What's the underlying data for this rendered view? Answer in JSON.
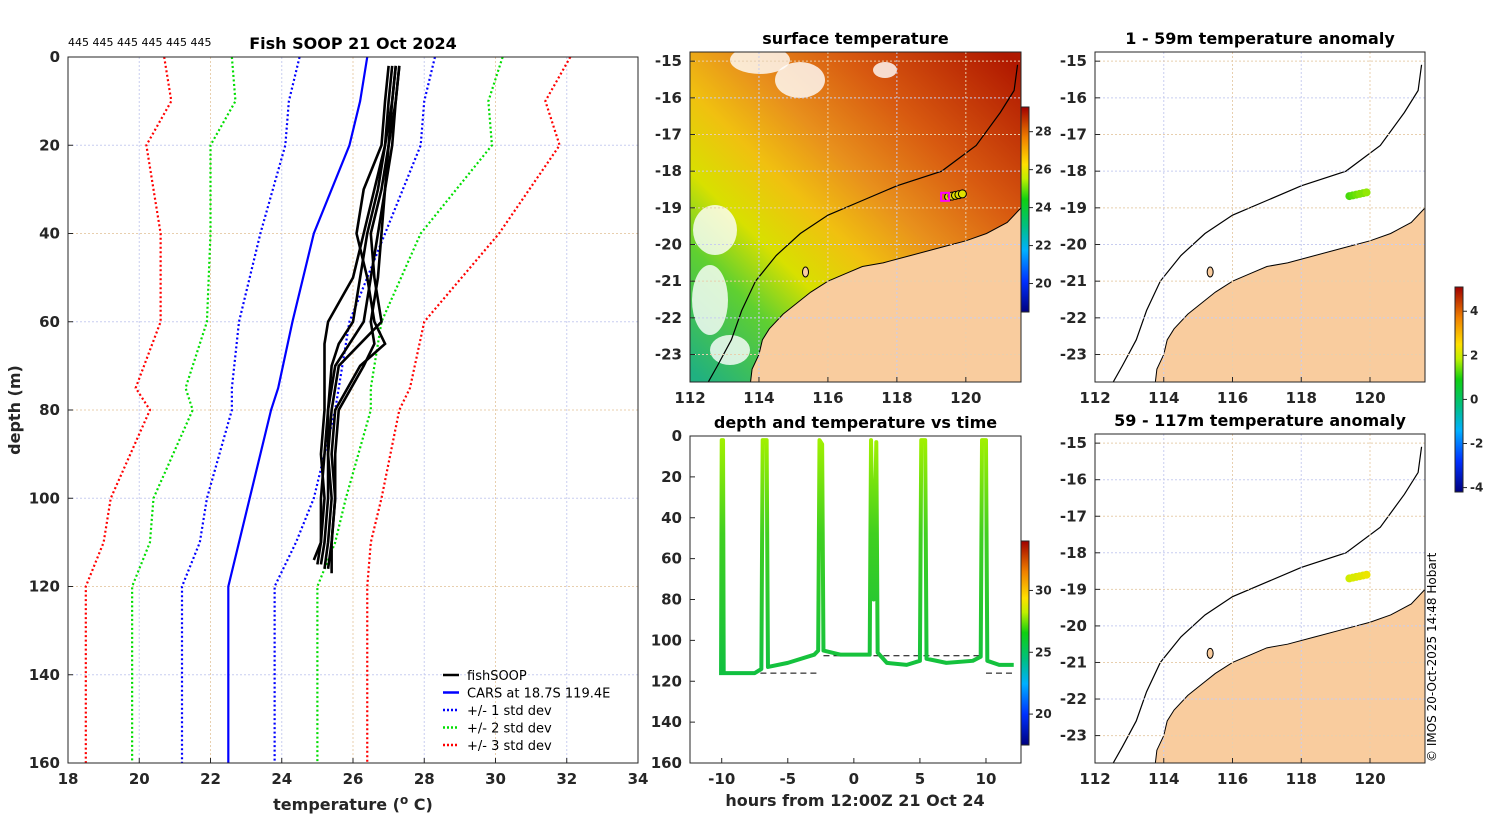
{
  "figure": {
    "copyright": "© IMOS 20-Oct-2025 14:48 Hobart"
  },
  "colors": {
    "fishsoop": "#000000",
    "cars": "#0000ff",
    "sd1": "#0000ff",
    "sd2": "#00dd00",
    "sd3": "#ff0000",
    "land": "#f9cc9e",
    "marker": "#ff00ff"
  },
  "chart_data": [
    {
      "type": "line",
      "title": "Fish SOOP 21 Oct 2024",
      "annotation": "445 445 445 445 445 445",
      "xlabel_parts": [
        "temperature (",
        "o",
        " C)"
      ],
      "ylabel": "depth (m)",
      "xlim": [
        18,
        34
      ],
      "ylim": [
        0,
        160
      ],
      "y_reversed": true,
      "xticks": [
        "18",
        "20",
        "22",
        "24",
        "26",
        "28",
        "30",
        "32",
        "34"
      ],
      "yticks": [
        "0",
        "20",
        "40",
        "60",
        "80",
        "100",
        "120",
        "140",
        "160"
      ],
      "legend": {
        "placement": "bottom-right",
        "entries": [
          "fishSOOP",
          "CARS at 18.7S 119.4E",
          "+/- 1 std dev",
          "+/- 2 std dev",
          "+/- 3 std dev"
        ]
      },
      "depths": [
        0,
        10,
        20,
        40,
        60,
        75,
        80,
        100,
        110,
        120,
        160
      ],
      "series": [
        {
          "name": "CARS mean",
          "style": "solid",
          "color": "#0000ff",
          "values": [
            26.4,
            26.2,
            25.9,
            24.9,
            24.3,
            23.9,
            23.7,
            23.1,
            22.8,
            22.5,
            22.5
          ]
        },
        {
          "name": "-1 std",
          "style": "dotted",
          "color": "#0000ff",
          "values": [
            24.5,
            24.2,
            24.1,
            23.4,
            22.8,
            22.6,
            22.6,
            21.9,
            21.7,
            21.2,
            21.2
          ]
        },
        {
          "name": "+1 std",
          "style": "dotted",
          "color": "#0000ff",
          "values": [
            28.3,
            28.0,
            27.9,
            26.9,
            25.9,
            25.6,
            25.5,
            24.9,
            24.4,
            23.8,
            23.8
          ]
        },
        {
          "name": "-2 std",
          "style": "dotted",
          "color": "#00dd00",
          "values": [
            22.6,
            22.7,
            22.0,
            22.0,
            21.9,
            21.3,
            21.5,
            20.4,
            20.3,
            19.8,
            19.8
          ]
        },
        {
          "name": "+2 std",
          "style": "dotted",
          "color": "#00dd00",
          "values": [
            30.2,
            29.8,
            29.9,
            27.9,
            26.8,
            26.5,
            26.5,
            25.8,
            25.5,
            25.0,
            25.0
          ]
        },
        {
          "name": "-3 std",
          "style": "dotted",
          "color": "#ff0000",
          "values": [
            20.7,
            20.9,
            20.2,
            20.6,
            20.6,
            19.9,
            20.3,
            19.2,
            19.0,
            18.5,
            18.5
          ]
        },
        {
          "name": "+3 std",
          "style": "dotted",
          "color": "#ff0000",
          "values": [
            32.1,
            31.4,
            31.8,
            30.1,
            28.0,
            27.6,
            27.3,
            26.8,
            26.5,
            26.4,
            26.4
          ]
        }
      ],
      "profiles": [
        {
          "depth": [
            2,
            10,
            20,
            30,
            40,
            50,
            60,
            65,
            70,
            80,
            90,
            100,
            110,
            115
          ],
          "temp": [
            27.1,
            27.0,
            26.9,
            26.6,
            26.3,
            26.0,
            25.3,
            25.2,
            25.2,
            25.2,
            25.1,
            25.2,
            25.1,
            25.0
          ]
        },
        {
          "depth": [
            2,
            10,
            20,
            30,
            40,
            50,
            60,
            65,
            70,
            80,
            90,
            100,
            110,
            116
          ],
          "temp": [
            27.3,
            27.2,
            27.1,
            26.9,
            26.7,
            26.5,
            26.3,
            25.9,
            25.5,
            25.3,
            25.3,
            25.4,
            25.3,
            25.2
          ]
        },
        {
          "depth": [
            2,
            10,
            20,
            30,
            40,
            50,
            60,
            65,
            70,
            80,
            90,
            100,
            110,
            115
          ],
          "temp": [
            27.2,
            27.1,
            27.0,
            26.8,
            26.5,
            26.6,
            26.8,
            26.2,
            25.6,
            25.4,
            25.3,
            25.3,
            25.2,
            25.1
          ]
        },
        {
          "depth": [
            2,
            10,
            20,
            30,
            40,
            50,
            60,
            65,
            70,
            80,
            90,
            100,
            110,
            117
          ],
          "temp": [
            27.0,
            26.9,
            26.8,
            26.3,
            26.1,
            26.4,
            26.6,
            26.9,
            26.2,
            25.5,
            25.4,
            25.5,
            25.4,
            25.4
          ]
        },
        {
          "depth": [
            2,
            10,
            20,
            30,
            40,
            50,
            60,
            65,
            70,
            80,
            90,
            100,
            110,
            114
          ],
          "temp": [
            27.2,
            27.1,
            26.9,
            26.7,
            26.4,
            26.2,
            26.0,
            25.6,
            25.4,
            25.3,
            25.2,
            25.1,
            25.1,
            24.9
          ]
        },
        {
          "depth": [
            2,
            10,
            20,
            30,
            40,
            50,
            60,
            65,
            70,
            80,
            90,
            100,
            110,
            116
          ],
          "temp": [
            27.3,
            27.2,
            27.0,
            26.9,
            26.8,
            26.7,
            26.5,
            26.6,
            26.3,
            25.6,
            25.5,
            25.5,
            25.4,
            25.3
          ]
        }
      ]
    },
    {
      "type": "heatmap",
      "title": "surface temperature",
      "xlim": [
        112,
        121.6
      ],
      "ylim": [
        -23.75,
        -14.75
      ],
      "xticks": [
        "112",
        "114",
        "116",
        "118",
        "120"
      ],
      "xtick_values": [
        112,
        114,
        116,
        118,
        120
      ],
      "yticks": [
        "-15",
        "-16",
        "-17",
        "-18",
        "-19",
        "-20",
        "-21",
        "-22",
        "-23"
      ],
      "ytick_values": [
        -15,
        -16,
        -17,
        -18,
        -19,
        -20,
        -21,
        -22,
        -23
      ],
      "colorbar": {
        "range": [
          18.5,
          29.3
        ],
        "ticks": [
          "20",
          "22",
          "24",
          "26",
          "28"
        ],
        "tick_values": [
          20,
          22,
          24,
          26,
          28
        ]
      },
      "track_lon": [
        119.5,
        119.6,
        119.7,
        119.8,
        119.9
      ],
      "track_lat": [
        -18.7,
        -18.68,
        -18.66,
        -18.64,
        -18.62
      ],
      "marker": {
        "lon": 119.4,
        "lat": -18.7
      }
    },
    {
      "type": "line",
      "title": "depth and temperature vs time",
      "xlabel": "hours from 12:00Z 21 Oct 24",
      "xlim": [
        -12.4,
        12.65
      ],
      "ylim": [
        0,
        160
      ],
      "y_reversed": true,
      "xticks": [
        "-10",
        "-5",
        "0",
        "5",
        "10"
      ],
      "xtick_values": [
        -10,
        -5,
        0,
        5,
        10
      ],
      "yticks": [
        "0",
        "20",
        "40",
        "60",
        "80",
        "100",
        "120",
        "140",
        "160"
      ],
      "ytick_values": [
        0,
        20,
        40,
        60,
        80,
        100,
        120,
        140,
        160
      ],
      "colorbar": {
        "range": [
          17.5,
          34
        ],
        "ticks": [
          "20",
          "25",
          "30"
        ],
        "tick_values": [
          20,
          25,
          30
        ]
      },
      "time": [
        -10.05,
        -10.0,
        -9.9,
        -9.85,
        -9,
        -7.5,
        -7,
        -6.9,
        -6.6,
        -6.5,
        -5,
        -3,
        -2.7,
        -2.6,
        -2.4,
        -2.3,
        -1,
        0.5,
        1.2,
        1.3,
        1.5,
        1.7,
        1.8,
        2.5,
        4,
        5,
        5.1,
        5.4,
        5.5,
        7,
        9,
        9.6,
        9.7,
        10.0,
        10.1,
        11,
        12.1
      ],
      "depth": [
        117,
        2,
        2,
        116,
        116,
        116,
        114,
        2,
        2,
        113,
        111,
        107,
        105,
        2,
        4,
        105,
        107,
        107,
        107,
        2,
        80,
        3,
        106,
        111,
        112,
        110,
        2,
        2,
        109,
        111,
        110,
        108,
        2,
        2,
        110,
        112,
        112
      ],
      "bottom_dashes": [
        {
          "time": [
            -10.1,
            -2.6
          ],
          "depth": [
            116,
            116
          ]
        },
        {
          "time": [
            -2.3,
            9.6
          ],
          "depth": [
            107.5,
            107.5
          ]
        },
        {
          "time": [
            10.0,
            12.1
          ],
          "depth": [
            116,
            116
          ]
        }
      ]
    },
    {
      "type": "scatter",
      "title": "1 - 59m temperature anomaly",
      "xlim": [
        112,
        121.6
      ],
      "ylim": [
        -23.75,
        -14.75
      ],
      "xticks": [
        "112",
        "114",
        "116",
        "118",
        "120"
      ],
      "xtick_values": [
        112,
        114,
        116,
        118,
        120
      ],
      "yticks": [
        "-15",
        "-16",
        "-17",
        "-18",
        "-19",
        "-20",
        "-21",
        "-22",
        "-23"
      ],
      "ytick_values": [
        -15,
        -16,
        -17,
        -18,
        -19,
        -20,
        -21,
        -22,
        -23
      ],
      "points_lon": [
        119.4,
        119.5,
        119.6,
        119.7,
        119.8,
        119.9
      ],
      "points_lat": [
        -18.68,
        -18.66,
        -18.64,
        -18.62,
        -18.6,
        -18.58
      ],
      "anomaly": [
        1.2,
        1.3,
        1.4,
        1.5,
        1.5,
        1.6
      ],
      "colorbar": {
        "range": [
          -4.2,
          5.1
        ],
        "ticks": [
          "4",
          "2",
          "0",
          "-2",
          "-4"
        ],
        "tick_values": [
          4,
          2,
          0,
          -2,
          -4
        ]
      }
    },
    {
      "type": "scatter",
      "title": "59 - 117m temperature anomaly",
      "xlim": [
        112,
        121.6
      ],
      "ylim": [
        -23.75,
        -14.75
      ],
      "xticks": [
        "112",
        "114",
        "116",
        "118",
        "120"
      ],
      "xtick_values": [
        112,
        114,
        116,
        118,
        120
      ],
      "yticks": [
        "-15",
        "-16",
        "-17",
        "-18",
        "-19",
        "-20",
        "-21",
        "-22",
        "-23"
      ],
      "ytick_values": [
        -15,
        -16,
        -17,
        -18,
        -19,
        -20,
        -21,
        -22,
        -23
      ],
      "points_lon": [
        119.4,
        119.5,
        119.6,
        119.7,
        119.8,
        119.9
      ],
      "points_lat": [
        -18.7,
        -18.68,
        -18.66,
        -18.64,
        -18.62,
        -18.6
      ],
      "anomaly": [
        2.0,
        2.1,
        2.1,
        2.2,
        2.2,
        2.3
      ]
    }
  ]
}
